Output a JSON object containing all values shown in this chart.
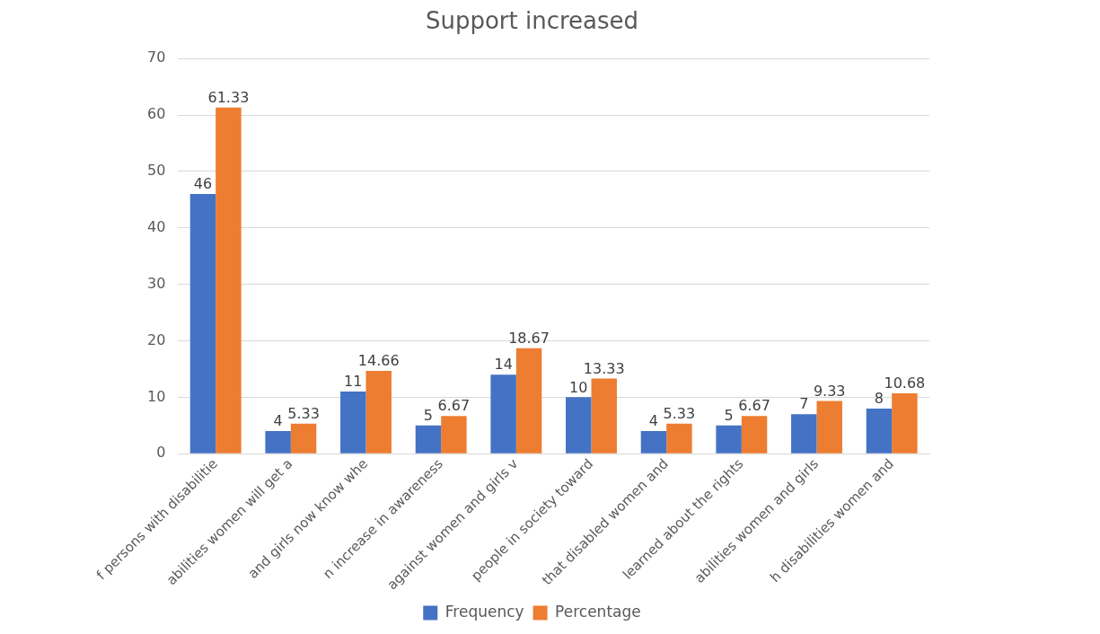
{
  "chart_data": {
    "type": "bar",
    "title": "Support increased",
    "categories": [
      "f persons with disabilitie",
      "abilities women will get a",
      "and girls now know whe",
      "n increase in awareness",
      "against women and girls v",
      "people in society toward",
      "that disabled women and",
      "learned about the rights",
      "abilities women and girls",
      "h disabilities women and"
    ],
    "series": [
      {
        "name": "Frequency",
        "color": "#4472c4",
        "values": [
          46,
          4,
          11,
          5,
          14,
          10,
          4,
          5,
          7,
          8
        ]
      },
      {
        "name": "Percentage",
        "color": "#ed7d31",
        "values": [
          61.33,
          5.33,
          14.66,
          6.67,
          18.67,
          13.33,
          5.33,
          6.67,
          9.33,
          10.68
        ]
      }
    ],
    "ylim": [
      0,
      70
    ],
    "yticks": [
      0,
      10,
      20,
      30,
      40,
      50,
      60,
      70
    ],
    "grid": "y",
    "legend": "bottom",
    "data_labels": true
  }
}
